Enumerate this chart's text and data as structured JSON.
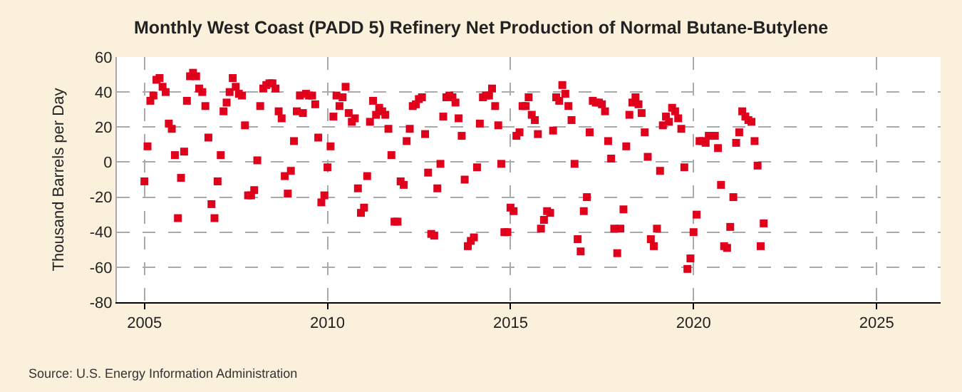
{
  "chart_data": {
    "type": "scatter",
    "title": "Monthly West Coast (PADD 5) Refinery Net Production of Normal Butane-Butylene",
    "ylabel": "Thousand Barrels per Day",
    "x": [
      "2005-01",
      "2005-02",
      "2005-03",
      "2005-04",
      "2005-05",
      "2005-06",
      "2005-07",
      "2005-08",
      "2005-09",
      "2005-10",
      "2005-11",
      "2005-12",
      "2006-01",
      "2006-02",
      "2006-03",
      "2006-04",
      "2006-05",
      "2006-06",
      "2006-07",
      "2006-08",
      "2006-09",
      "2006-10",
      "2006-11",
      "2006-12",
      "2007-01",
      "2007-02",
      "2007-03",
      "2007-04",
      "2007-05",
      "2007-06",
      "2007-07",
      "2007-08",
      "2007-09",
      "2007-10",
      "2007-11",
      "2007-12",
      "2008-01",
      "2008-02",
      "2008-03",
      "2008-04",
      "2008-05",
      "2008-06",
      "2008-07",
      "2008-08",
      "2008-09",
      "2008-10",
      "2008-11",
      "2008-12",
      "2009-01",
      "2009-02",
      "2009-03",
      "2009-04",
      "2009-05",
      "2009-06",
      "2009-07",
      "2009-08",
      "2009-09",
      "2009-10",
      "2009-11",
      "2009-12",
      "2010-01",
      "2010-02",
      "2010-03",
      "2010-04",
      "2010-05",
      "2010-06",
      "2010-07",
      "2010-08",
      "2010-09",
      "2010-10",
      "2010-11",
      "2010-12",
      "2011-01",
      "2011-02",
      "2011-03",
      "2011-04",
      "2011-05",
      "2011-06",
      "2011-07",
      "2011-08",
      "2011-09",
      "2011-10",
      "2011-11",
      "2011-12",
      "2012-01",
      "2012-02",
      "2012-03",
      "2012-04",
      "2012-05",
      "2012-06",
      "2012-07",
      "2012-08",
      "2012-09",
      "2012-10",
      "2012-11",
      "2012-12",
      "2013-01",
      "2013-02",
      "2013-03",
      "2013-04",
      "2013-05",
      "2013-06",
      "2013-07",
      "2013-08",
      "2013-09",
      "2013-10",
      "2013-11",
      "2013-12",
      "2014-01",
      "2014-02",
      "2014-03",
      "2014-04",
      "2014-05",
      "2014-06",
      "2014-07",
      "2014-08",
      "2014-09",
      "2014-10",
      "2014-11",
      "2014-12",
      "2015-01",
      "2015-02",
      "2015-03",
      "2015-04",
      "2015-05",
      "2015-06",
      "2015-07",
      "2015-08",
      "2015-09",
      "2015-10",
      "2015-11",
      "2015-12",
      "2016-01",
      "2016-02",
      "2016-03",
      "2016-04",
      "2016-05",
      "2016-06",
      "2016-07",
      "2016-08",
      "2016-09",
      "2016-10",
      "2016-11",
      "2016-12",
      "2017-01",
      "2017-02",
      "2017-03",
      "2017-04",
      "2017-05",
      "2017-06",
      "2017-07",
      "2017-08",
      "2017-09",
      "2017-10",
      "2017-11",
      "2017-12",
      "2018-01",
      "2018-02",
      "2018-03",
      "2018-04",
      "2018-05",
      "2018-06",
      "2018-07",
      "2018-08",
      "2018-09",
      "2018-10",
      "2018-11",
      "2018-12",
      "2019-01",
      "2019-02",
      "2019-03",
      "2019-04",
      "2019-05",
      "2019-06",
      "2019-07",
      "2019-08",
      "2019-09",
      "2019-10",
      "2019-11",
      "2019-12",
      "2020-01",
      "2020-02",
      "2020-03",
      "2020-04",
      "2020-05",
      "2020-06",
      "2020-07",
      "2020-08",
      "2020-09",
      "2020-10",
      "2020-11",
      "2020-12",
      "2021-01",
      "2021-02",
      "2021-03",
      "2021-04",
      "2021-05",
      "2021-06",
      "2021-07",
      "2021-08",
      "2021-09",
      "2021-10",
      "2021-11",
      "2021-12"
    ],
    "series": [
      {
        "color": "#e0001b",
        "values": [
          -11,
          9,
          35,
          38,
          47,
          48,
          43,
          40,
          22,
          19,
          4,
          -32,
          -9,
          6,
          35,
          49,
          51,
          49,
          42,
          40,
          32,
          14,
          -24,
          -32,
          -11,
          4,
          29,
          34,
          40,
          48,
          43,
          39,
          38,
          21,
          -19,
          -19,
          -16,
          1,
          32,
          42,
          44,
          45,
          45,
          42,
          29,
          25,
          -8,
          -18,
          -5,
          12,
          29,
          38,
          28,
          39,
          38,
          38,
          33,
          14,
          -23,
          -19,
          -3,
          9,
          26,
          38,
          32,
          37,
          43,
          28,
          23,
          25,
          -15,
          -29,
          -26,
          -8,
          23,
          35,
          27,
          31,
          29,
          27,
          19,
          4,
          -34,
          -34,
          -11,
          -13,
          12,
          19,
          32,
          33,
          36,
          37,
          16,
          -6,
          -41,
          -42,
          -15,
          -1,
          26,
          37,
          38,
          37,
          34,
          25,
          15,
          -10,
          -48,
          -45,
          -43,
          -3,
          22,
          37,
          38,
          38,
          42,
          32,
          21,
          -1,
          -40,
          -40,
          -26,
          -28,
          15,
          17,
          32,
          32,
          37,
          27,
          24,
          16,
          -38,
          -33,
          -28,
          -29,
          18,
          37,
          35,
          44,
          39,
          32,
          24,
          -1,
          -44,
          -51,
          -28,
          -20,
          17,
          35,
          34,
          34,
          33,
          29,
          12,
          2,
          -38,
          -52,
          -38,
          -27,
          9,
          27,
          34,
          37,
          33,
          28,
          17,
          3,
          -44,
          -48,
          -38,
          -5,
          21,
          26,
          23,
          31,
          29,
          25,
          19,
          -3,
          -61,
          -55,
          -40,
          -30,
          12,
          12,
          11,
          15,
          15,
          15,
          8,
          -13,
          -48,
          -49,
          -37,
          -20,
          11,
          17,
          29,
          26,
          24,
          23,
          12,
          -2,
          -48,
          -35
        ]
      }
    ],
    "xlim": [
      "2004-04",
      "2026-10"
    ],
    "xticks": [
      "2005",
      "2010",
      "2015",
      "2020",
      "2025"
    ],
    "ylim": [
      -80,
      60
    ],
    "yticks": [
      -80,
      -60,
      -40,
      -20,
      0,
      20,
      40,
      60
    ],
    "grid": true,
    "legend": false,
    "marker": "square",
    "annotations": [
      "Source: U.S. Energy Information Administration"
    ]
  }
}
